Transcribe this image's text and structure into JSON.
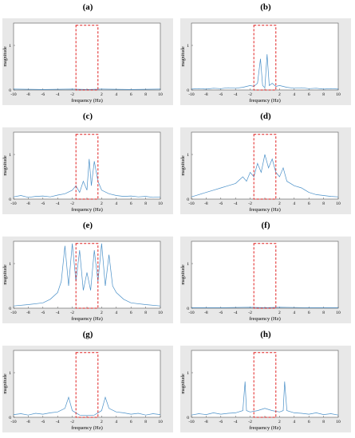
{
  "colors": {
    "signal": "#4a90c8",
    "frame_outer": "#e8e8e8",
    "plot_bg": "#ffffff",
    "box": "#e02020",
    "box_alt": "#b8860b"
  },
  "chart_data": [
    {
      "id": "a",
      "type": "line",
      "title": "(a)",
      "xlabel": "frequency (Hz)",
      "ylabel": "magnitude",
      "xlim": [
        -10,
        10
      ],
      "ylim": [
        0,
        1.5
      ],
      "xticks": [
        "-10",
        "-8",
        "-6",
        "-4",
        "-2",
        "",
        "2",
        "4",
        "6",
        "8",
        "10"
      ],
      "yticks": [
        "0",
        "1"
      ],
      "highlight": {
        "x": [
          -1.5,
          1.5
        ],
        "y": [
          0,
          1.45
        ]
      },
      "series": [
        {
          "x": [
            -10,
            -6,
            -2,
            0,
            2,
            6,
            10
          ],
          "values": [
            0.02,
            0.01,
            0.02,
            0.01,
            0.02,
            0.01,
            0.02
          ]
        }
      ]
    },
    {
      "id": "b",
      "type": "line",
      "title": "(b)",
      "xlabel": "frequency (Hz)",
      "ylabel": "magnitude",
      "xlim": [
        -10,
        10
      ],
      "ylim": [
        0,
        1.5
      ],
      "xticks": [
        "-10",
        "-8",
        "-6",
        "-4",
        "-2",
        "",
        "2",
        "4",
        "6",
        "8",
        "10"
      ],
      "yticks": [
        "0",
        "1"
      ],
      "highlight": {
        "x": [
          -1.5,
          1.5
        ],
        "y": [
          0,
          1.45
        ]
      },
      "series": [
        {
          "x": [
            -10,
            -9,
            -8,
            -7,
            -6,
            -5,
            -4,
            -3,
            -2,
            -1.5,
            -1,
            -0.6,
            -0.3,
            0,
            0.3,
            0.6,
            1,
            1.5,
            2,
            3,
            4,
            5,
            6,
            7,
            8,
            9,
            10
          ],
          "values": [
            0.02,
            0.03,
            0.02,
            0.04,
            0.03,
            0.05,
            0.04,
            0.06,
            0.1,
            0.08,
            0.15,
            0.7,
            0.1,
            0.05,
            0.8,
            0.1,
            0.15,
            0.08,
            0.1,
            0.06,
            0.04,
            0.05,
            0.03,
            0.04,
            0.02,
            0.03,
            0.02
          ]
        }
      ]
    },
    {
      "id": "c",
      "type": "line",
      "title": "(c)",
      "xlabel": "frequency (Hz)",
      "ylabel": "magnitude",
      "xlim": [
        -10,
        10
      ],
      "ylim": [
        0,
        1.5
      ],
      "xticks": [
        "-10",
        "-8",
        "-6",
        "-4",
        "-2",
        "",
        "2",
        "4",
        "6",
        "8",
        "10"
      ],
      "yticks": [
        "0",
        "1"
      ],
      "highlight": {
        "x": [
          -1.5,
          1.5
        ],
        "y": [
          0,
          1.45
        ]
      },
      "series": [
        {
          "x": [
            -10,
            -9,
            -8,
            -7,
            -6,
            -5,
            -4,
            -3,
            -2,
            -1.5,
            -1,
            -0.5,
            0,
            0.3,
            0.6,
            1,
            1.5,
            2,
            3,
            4,
            5,
            6,
            7,
            8,
            9,
            10
          ],
          "values": [
            0.05,
            0.08,
            0.04,
            0.06,
            0.07,
            0.05,
            0.09,
            0.12,
            0.2,
            0.3,
            0.15,
            0.4,
            0.2,
            0.9,
            0.3,
            0.85,
            0.4,
            0.2,
            0.12,
            0.08,
            0.06,
            0.07,
            0.05,
            0.06,
            0.04,
            0.05
          ]
        }
      ]
    },
    {
      "id": "d",
      "type": "line",
      "title": "(d)",
      "xlabel": "frequency (Hz)",
      "ylabel": "magnitude",
      "xlim": [
        -10,
        10
      ],
      "ylim": [
        0,
        1.5
      ],
      "xticks": [
        "-10",
        "-8",
        "-6",
        "-4",
        "-2",
        "",
        "2",
        "4",
        "6",
        "8",
        "10"
      ],
      "yticks": [
        "0",
        "1"
      ],
      "highlight": {
        "x": [
          -1.5,
          1.5
        ],
        "y": [
          0,
          1.45
        ]
      },
      "series": [
        {
          "x": [
            -10,
            -9,
            -8,
            -7,
            -6,
            -5,
            -4,
            -3,
            -2.5,
            -2,
            -1.5,
            -1,
            -0.5,
            0,
            0.5,
            1,
            1.5,
            2,
            2.5,
            3,
            4,
            5,
            6,
            7,
            8,
            9,
            10
          ],
          "values": [
            0.05,
            0.1,
            0.15,
            0.2,
            0.25,
            0.3,
            0.35,
            0.5,
            0.4,
            0.6,
            0.5,
            0.8,
            0.6,
            1.0,
            0.7,
            0.9,
            0.6,
            0.5,
            0.7,
            0.4,
            0.3,
            0.25,
            0.15,
            0.1,
            0.08,
            0.06,
            0.05
          ]
        }
      ]
    },
    {
      "id": "e",
      "type": "line",
      "title": "(e)",
      "xlabel": "frequency (Hz)",
      "ylabel": "magnitude",
      "xlim": [
        -10,
        10
      ],
      "ylim": [
        0,
        1.5
      ],
      "xticks": [
        "-10",
        "-8",
        "-6",
        "-4",
        "-2",
        "",
        "2",
        "4",
        "6",
        "8",
        "10"
      ],
      "yticks": [
        "0",
        "1"
      ],
      "highlight": {
        "x": [
          -1.5,
          1.5
        ],
        "y": [
          0,
          1.45
        ]
      },
      "series": [
        {
          "x": [
            -10,
            -8,
            -6,
            -5,
            -4,
            -3.5,
            -3,
            -2.5,
            -2,
            -1.5,
            -1,
            -0.5,
            0,
            0.5,
            1,
            1.5,
            2,
            2.5,
            3,
            3.5,
            4,
            5,
            6,
            8,
            10
          ],
          "values": [
            0.05,
            0.08,
            0.12,
            0.2,
            0.35,
            0.6,
            1.4,
            0.5,
            1.45,
            0.6,
            1.3,
            0.4,
            0.8,
            0.4,
            1.3,
            0.6,
            1.45,
            0.5,
            1.2,
            0.5,
            0.35,
            0.2,
            0.12,
            0.08,
            0.05
          ]
        }
      ]
    },
    {
      "id": "f",
      "type": "line",
      "title": "(f)",
      "xlabel": "frequency (Hz)",
      "ylabel": "magnitude",
      "xlim": [
        -10,
        10
      ],
      "ylim": [
        0,
        1.5
      ],
      "xticks": [
        "-10",
        "-8",
        "-6",
        "-4",
        "-2",
        "",
        "2",
        "4",
        "6",
        "8",
        "10"
      ],
      "yticks": [
        "0",
        "1"
      ],
      "highlight": {
        "x": [
          -1.5,
          1.5
        ],
        "y": [
          0,
          1.45
        ]
      },
      "series": [
        {
          "x": [
            -10,
            -6,
            -2,
            0,
            2,
            6,
            10
          ],
          "values": [
            0.01,
            0.01,
            0.02,
            0.01,
            0.02,
            0.01,
            0.01
          ]
        }
      ]
    },
    {
      "id": "g",
      "type": "line",
      "title": "(g)",
      "xlabel": "frequency (Hz)",
      "ylabel": "magnitude",
      "xlim": [
        -10,
        10
      ],
      "ylim": [
        0,
        1.5
      ],
      "xticks": [
        "-10",
        "-8",
        "-6",
        "-4",
        "-2",
        "",
        "2",
        "4",
        "6",
        "8",
        "10"
      ],
      "yticks": [
        "0",
        "1"
      ],
      "highlight": {
        "x": [
          -1.5,
          1.5
        ],
        "y": [
          0,
          1.45
        ]
      },
      "series": [
        {
          "x": [
            -10,
            -9,
            -8,
            -7,
            -6,
            -5,
            -4,
            -3,
            -2.5,
            -2,
            -1.5,
            -1,
            0,
            1,
            1.5,
            2,
            2.5,
            3,
            4,
            5,
            6,
            7,
            8,
            9,
            10
          ],
          "values": [
            0.06,
            0.08,
            0.05,
            0.09,
            0.07,
            0.1,
            0.12,
            0.2,
            0.45,
            0.15,
            0.1,
            0.05,
            0.04,
            0.05,
            0.1,
            0.15,
            0.45,
            0.2,
            0.12,
            0.1,
            0.07,
            0.09,
            0.05,
            0.08,
            0.06
          ]
        }
      ]
    },
    {
      "id": "h",
      "type": "line",
      "title": "(h)",
      "xlabel": "frequency (Hz)",
      "ylabel": "magnitude",
      "xlim": [
        -10,
        10
      ],
      "ylim": [
        0,
        1.5
      ],
      "xticks": [
        "-10",
        "-8",
        "-6",
        "-4",
        "-2",
        "",
        "2",
        "4",
        "6",
        "8",
        "10"
      ],
      "yticks": [
        "0",
        "1"
      ],
      "highlight": {
        "x": [
          -1.5,
          1.5
        ],
        "y": [
          0,
          1.45
        ]
      },
      "series": [
        {
          "x": [
            -10,
            -9,
            -8,
            -7,
            -6,
            -5,
            -4,
            -3,
            -2.7,
            -2.5,
            -2,
            -1,
            0,
            1,
            2,
            2.5,
            2.7,
            3,
            4,
            5,
            6,
            7,
            8,
            9,
            10
          ],
          "values": [
            0.05,
            0.08,
            0.06,
            0.1,
            0.07,
            0.09,
            0.1,
            0.15,
            0.8,
            0.15,
            0.12,
            0.15,
            0.2,
            0.15,
            0.12,
            0.15,
            0.8,
            0.15,
            0.1,
            0.09,
            0.07,
            0.1,
            0.06,
            0.08,
            0.05
          ]
        }
      ]
    }
  ]
}
